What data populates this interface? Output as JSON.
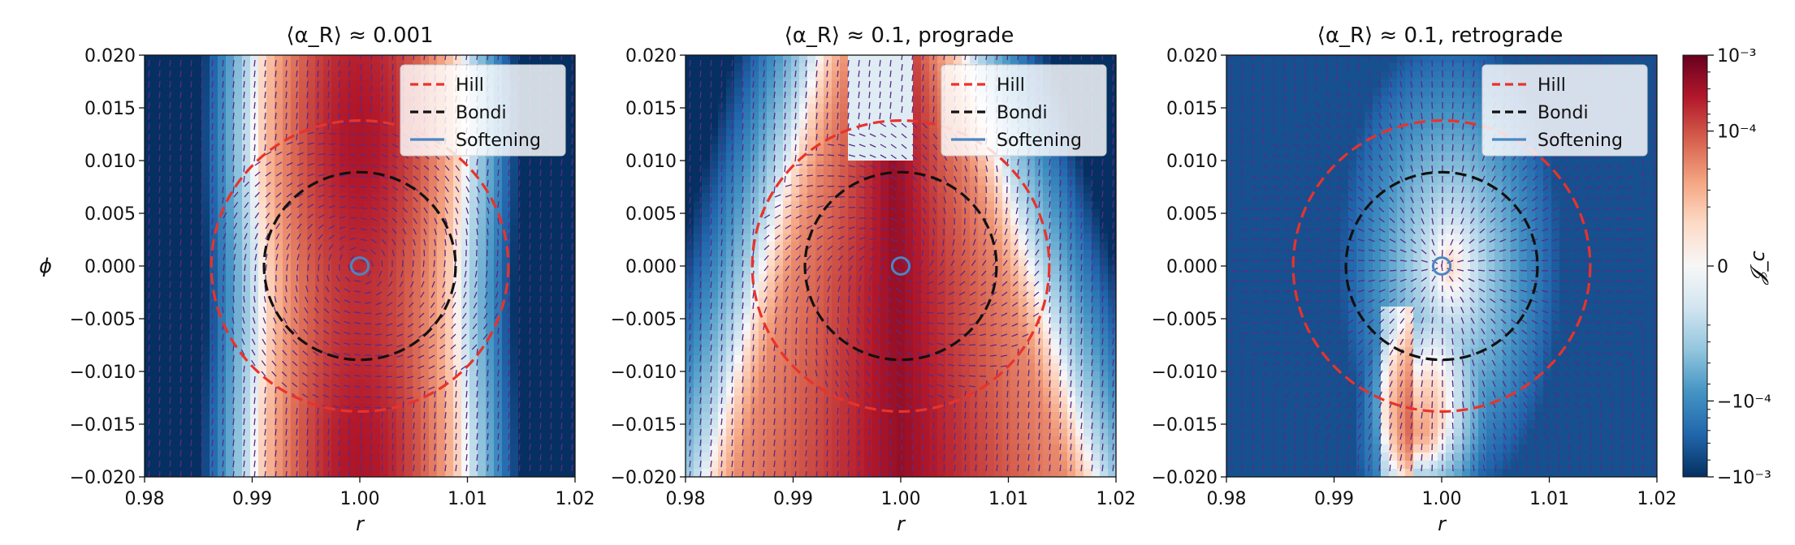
{
  "chart_data": {
    "type": "heatmap",
    "figure_layout": "three panels side by side with a shared colorbar",
    "panels": [
      {
        "title": "⟨α_R⟩ ≈ 0.001",
        "xlabel": "r",
        "ylabel": "ϕ",
        "xlim": [
          0.98,
          1.02
        ],
        "ylim": [
          -0.02,
          0.02
        ],
        "x_ticks": [
          "0.98",
          "0.99",
          "1.00",
          "1.01",
          "1.02"
        ],
        "y_ticks": [
          "0.020",
          "0.015",
          "0.010",
          "0.005",
          "0.000",
          "−0.005",
          "−0.010",
          "−0.015",
          "−0.020"
        ],
        "pattern": "vertical red band centered at r≈1.00, blue at edges",
        "vector_field": "arrows circulating around planet at (1.00, 0.00)",
        "legend": {
          "placement": "upper right",
          "entries": [
            {
              "label": "Hill",
              "style": "red dashed",
              "color": "#e8332b"
            },
            {
              "label": "Bondi",
              "style": "black dashed",
              "color": "#111111"
            },
            {
              "label": "Softening",
              "style": "blue solid",
              "color": "#4a86c5"
            }
          ]
        },
        "circles": {
          "center": [
            1.0,
            0.0
          ],
          "hill_radius": 0.0138,
          "bondi_radius": 0.0089,
          "softening_radius": 0.0008
        }
      },
      {
        "title": "⟨α_R⟩ ≈ 0.1, prograde",
        "xlabel": "r",
        "xlim": [
          0.98,
          1.02
        ],
        "ylim": [
          -0.02,
          0.02
        ],
        "x_ticks": [
          "0.98",
          "0.99",
          "1.00",
          "1.01",
          "1.02"
        ],
        "y_ticks": [
          "0.020",
          "0.015",
          "0.010",
          "0.005",
          "0.000",
          "−0.005",
          "−0.010",
          "−0.015",
          "−0.020"
        ],
        "pattern": "red region widening toward bottom, blue on sides",
        "vector_field": "arrows spiralling around planet at (1.00, 0.00)",
        "legend": {
          "placement": "upper right",
          "entries": [
            {
              "label": "Hill",
              "style": "red dashed",
              "color": "#e8332b"
            },
            {
              "label": "Bondi",
              "style": "black dashed",
              "color": "#111111"
            },
            {
              "label": "Softening",
              "style": "blue solid",
              "color": "#4a86c5"
            }
          ]
        },
        "circles": {
          "center": [
            1.0,
            0.0
          ],
          "hill_radius": 0.0138,
          "bondi_radius": 0.0089,
          "softening_radius": 0.0008
        }
      },
      {
        "title": "⟨α_R⟩ ≈ 0.1, retrograde",
        "xlabel": "r",
        "xlim": [
          0.98,
          1.02
        ],
        "ylim": [
          -0.02,
          0.02
        ],
        "x_ticks": [
          "0.98",
          "0.99",
          "1.00",
          "1.01",
          "1.02"
        ],
        "y_ticks": [
          "0.020",
          "0.015",
          "0.010",
          "0.005",
          "0.000",
          "−0.005",
          "−0.010",
          "−0.015",
          "−0.020"
        ],
        "pattern": "mostly blue with pale white/orange band near planet and lower middle",
        "vector_field": "arrows converging radially onto planet at (1.00, 0.00)",
        "legend": {
          "placement": "upper right",
          "entries": [
            {
              "label": "Hill",
              "style": "red dashed",
              "color": "#e8332b"
            },
            {
              "label": "Bondi",
              "style": "black dashed",
              "color": "#111111"
            },
            {
              "label": "Softening",
              "style": "blue solid",
              "color": "#4a86c5"
            }
          ]
        },
        "circles": {
          "center": [
            1.0,
            0.0
          ],
          "hill_radius": 0.0138,
          "bondi_radius": 0.0089,
          "softening_radius": 0.0008
        }
      }
    ],
    "colorbar": {
      "label": "𝓙_c",
      "scale": "symlog",
      "range": [
        -0.001,
        0.001
      ],
      "ticks": [
        {
          "value": 0.001,
          "label": "10⁻³"
        },
        {
          "value": 0.0001,
          "label": "10⁻⁴"
        },
        {
          "value": 0,
          "label": "0"
        },
        {
          "value": -0.0001,
          "label": "−10⁻⁴"
        },
        {
          "value": -0.001,
          "label": "−10⁻³"
        }
      ],
      "colors": [
        "#67001f",
        "#b2182b",
        "#d6604d",
        "#f4a582",
        "#fddbc7",
        "#f7f7f7",
        "#d1e5f0",
        "#92c5de",
        "#4393c3",
        "#2166ac",
        "#053061"
      ]
    },
    "colors": {
      "vector_arrows": "#5a2a8a",
      "hill": "#e8332b",
      "bondi": "#111111",
      "softening": "#4a86c5"
    }
  }
}
